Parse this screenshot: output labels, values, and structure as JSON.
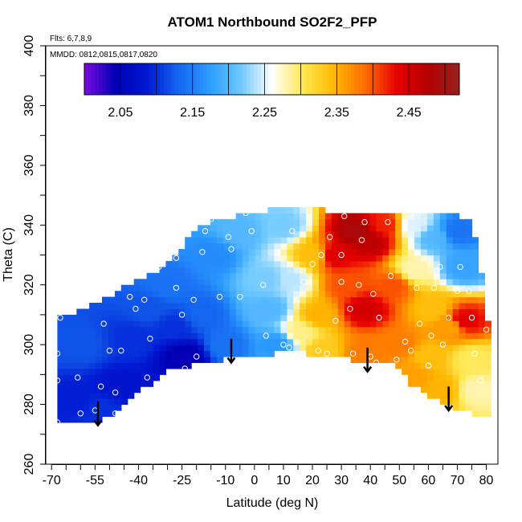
{
  "chart_data": {
    "type": "heatmap",
    "title": "ATOM1 Northbound SO2F2_PFP",
    "flights_label": "Flts: 6,7,8,9",
    "dates_label": "MMDD: 0812,0815,0817,0820",
    "xlabel": "Latitude (deg N)",
    "ylabel": "Theta (C)",
    "xlim": [
      -72,
      84
    ],
    "ylim": [
      260,
      400
    ],
    "x_ticks": [
      -70,
      -55,
      -40,
      -25,
      -10,
      0,
      10,
      20,
      30,
      40,
      50,
      60,
      70,
      80
    ],
    "x_tick_labels": [
      "-70",
      "-55",
      "-40",
      "-25",
      "-10",
      "0",
      "10",
      "20",
      "30",
      "40",
      "50",
      "60",
      "70",
      "80"
    ],
    "x_minor_ticks": [
      -65,
      -60,
      -50,
      -45,
      -35,
      -30,
      -20,
      -15,
      -5,
      5,
      15,
      25,
      35,
      45,
      55,
      65,
      75
    ],
    "y_ticks": [
      260,
      280,
      300,
      320,
      340,
      360,
      380,
      400
    ],
    "y_tick_labels": [
      "260",
      "280",
      "300",
      "320",
      "340",
      "360",
      "380",
      "400"
    ],
    "y_minor_ticks": [
      270,
      290,
      310,
      330,
      350,
      370,
      390
    ],
    "colorbar": {
      "min": 2.0,
      "max": 2.52,
      "ticks": [
        2.05,
        2.15,
        2.25,
        2.35,
        2.45
      ],
      "tick_labels": [
        "2.05",
        "2.15",
        "2.25",
        "2.35",
        "2.45"
      ],
      "colors": [
        "#7a0ae0",
        "#0000b4",
        "#0018d2",
        "#1466f0",
        "#2c9cff",
        "#6cc8ff",
        "#ffffff",
        "#ffe850",
        "#ffb800",
        "#ff6a00",
        "#e80000",
        "#b40000",
        "#962020"
      ]
    },
    "domain_lower": [
      [
        -68,
        273
      ],
      [
        -56,
        274
      ],
      [
        -48,
        277
      ],
      [
        -36,
        287
      ],
      [
        -30,
        292
      ],
      [
        -15,
        294
      ],
      [
        -5,
        296
      ],
      [
        5,
        296
      ],
      [
        13,
        299
      ],
      [
        17,
        297
      ],
      [
        28,
        296
      ],
      [
        38,
        294
      ],
      [
        48,
        293
      ],
      [
        55,
        286
      ],
      [
        65,
        280
      ],
      [
        72,
        278
      ],
      [
        80,
        276
      ]
    ],
    "domain_upper": [
      [
        -68,
        310
      ],
      [
        -62,
        311
      ],
      [
        -56,
        313
      ],
      [
        -50,
        316
      ],
      [
        -44,
        320
      ],
      [
        -38,
        322
      ],
      [
        -32,
        326
      ],
      [
        -28,
        329
      ],
      [
        -24,
        334
      ],
      [
        -20,
        339
      ],
      [
        -14,
        342
      ],
      [
        -6,
        343
      ],
      [
        4,
        345
      ],
      [
        12,
        347
      ],
      [
        20,
        346
      ],
      [
        30,
        344
      ],
      [
        40,
        344
      ],
      [
        50,
        344
      ],
      [
        60,
        344
      ],
      [
        64,
        343
      ],
      [
        70,
        343
      ],
      [
        74,
        341
      ],
      [
        76,
        336
      ],
      [
        77,
        330
      ],
      [
        78,
        326
      ],
      [
        79,
        318
      ],
      [
        80,
        307
      ]
    ],
    "anchors": [
      {
        "lat": -62,
        "theta": 282,
        "value": 2.09
      },
      {
        "lat": -52,
        "theta": 278,
        "value": 2.1
      },
      {
        "lat": -60,
        "theta": 300,
        "value": 2.12
      },
      {
        "lat": -46,
        "theta": 286,
        "value": 2.08
      },
      {
        "lat": -42,
        "theta": 302,
        "value": 2.1
      },
      {
        "lat": -36,
        "theta": 312,
        "value": 2.12
      },
      {
        "lat": -30,
        "theta": 320,
        "value": 2.14
      },
      {
        "lat": -24,
        "theta": 296,
        "value": 2.04
      },
      {
        "lat": -28,
        "theta": 306,
        "value": 2.1
      },
      {
        "lat": -18,
        "theta": 310,
        "value": 2.13
      },
      {
        "lat": -10,
        "theta": 300,
        "value": 2.14
      },
      {
        "lat": -14,
        "theta": 330,
        "value": 2.16
      },
      {
        "lat": -5,
        "theta": 338,
        "value": 2.2
      },
      {
        "lat": 5,
        "theta": 312,
        "value": 2.2
      },
      {
        "lat": 8,
        "theta": 300,
        "value": 2.17
      },
      {
        "lat": 5,
        "theta": 322,
        "value": 2.22
      },
      {
        "lat": 12,
        "theta": 322,
        "value": 2.24
      },
      {
        "lat": 10,
        "theta": 340,
        "value": 2.22
      },
      {
        "lat": 16,
        "theta": 304,
        "value": 2.29
      },
      {
        "lat": 20,
        "theta": 330,
        "value": 2.34
      },
      {
        "lat": 22,
        "theta": 310,
        "value": 2.35
      },
      {
        "lat": 23,
        "theta": 298,
        "value": 2.33
      },
      {
        "lat": 28,
        "theta": 330,
        "value": 2.44
      },
      {
        "lat": 35,
        "theta": 338,
        "value": 2.49
      },
      {
        "lat": 40,
        "theta": 335,
        "value": 2.47
      },
      {
        "lat": 38,
        "theta": 312,
        "value": 2.45
      },
      {
        "lat": 32,
        "theta": 320,
        "value": 2.4
      },
      {
        "lat": 45,
        "theta": 340,
        "value": 2.42
      },
      {
        "lat": 48,
        "theta": 320,
        "value": 2.4
      },
      {
        "lat": 50,
        "theta": 300,
        "value": 2.38
      },
      {
        "lat": 38,
        "theta": 298,
        "value": 2.38
      },
      {
        "lat": 55,
        "theta": 340,
        "value": 2.25
      },
      {
        "lat": 55,
        "theta": 325,
        "value": 2.28
      },
      {
        "lat": 62,
        "theta": 336,
        "value": 2.2
      },
      {
        "lat": 70,
        "theta": 338,
        "value": 2.14
      },
      {
        "lat": 72,
        "theta": 326,
        "value": 2.18
      },
      {
        "lat": 62,
        "theta": 312,
        "value": 2.34
      },
      {
        "lat": 68,
        "theta": 306,
        "value": 2.36
      },
      {
        "lat": 72,
        "theta": 308,
        "value": 2.44
      },
      {
        "lat": 75,
        "theta": 295,
        "value": 2.3
      },
      {
        "lat": 76,
        "theta": 285,
        "value": 2.28
      },
      {
        "lat": 65,
        "theta": 285,
        "value": 2.35
      },
      {
        "lat": 60,
        "theta": 296,
        "value": 2.34
      },
      {
        "lat": 55,
        "theta": 290,
        "value": 2.36
      }
    ],
    "samples": [
      [
        -68,
        274
      ],
      [
        -68,
        288
      ],
      [
        -68,
        297
      ],
      [
        -67,
        309
      ],
      [
        -61,
        289
      ],
      [
        -60,
        277
      ],
      [
        -55,
        278
      ],
      [
        -53,
        286
      ],
      [
        -52,
        307
      ],
      [
        -50,
        298
      ],
      [
        -48,
        284
      ],
      [
        -48,
        277
      ],
      [
        -46,
        298
      ],
      [
        -43,
        316
      ],
      [
        -41,
        312
      ],
      [
        -38,
        315
      ],
      [
        -37,
        289
      ],
      [
        -36,
        302
      ],
      [
        -33,
        326
      ],
      [
        -30,
        329
      ],
      [
        -27,
        329
      ],
      [
        -27,
        319
      ],
      [
        -25,
        310
      ],
      [
        -24,
        292
      ],
      [
        -21,
        315
      ],
      [
        -20,
        296
      ],
      [
        -18,
        331
      ],
      [
        -17,
        338
      ],
      [
        -15,
        342
      ],
      [
        -12,
        316
      ],
      [
        -9,
        336
      ],
      [
        -8,
        332
      ],
      [
        -5,
        316
      ],
      [
        -3,
        344
      ],
      [
        -1,
        338
      ],
      [
        3,
        320
      ],
      [
        4,
        303
      ],
      [
        7,
        347
      ],
      [
        8,
        329
      ],
      [
        10,
        300
      ],
      [
        12,
        299
      ],
      [
        13,
        338
      ],
      [
        15,
        348
      ],
      [
        17,
        321
      ],
      [
        20,
        327
      ],
      [
        22,
        298
      ],
      [
        23,
        330
      ],
      [
        25,
        297
      ],
      [
        26,
        336
      ],
      [
        28,
        308
      ],
      [
        30,
        321
      ],
      [
        30,
        330
      ],
      [
        31,
        343
      ],
      [
        33,
        312
      ],
      [
        34,
        297
      ],
      [
        36,
        320
      ],
      [
        37,
        335
      ],
      [
        38,
        341
      ],
      [
        40,
        296
      ],
      [
        41,
        317
      ],
      [
        42,
        294
      ],
      [
        43,
        309
      ],
      [
        46,
        341
      ],
      [
        47,
        323
      ],
      [
        49,
        295
      ],
      [
        52,
        301
      ],
      [
        54,
        298
      ],
      [
        56,
        319
      ],
      [
        57,
        307
      ],
      [
        60,
        293
      ],
      [
        61,
        303
      ],
      [
        62,
        319
      ],
      [
        64,
        326
      ],
      [
        65,
        300
      ],
      [
        67,
        309
      ],
      [
        70,
        318
      ],
      [
        71,
        326
      ],
      [
        72,
        343
      ],
      [
        74,
        318
      ],
      [
        75,
        309
      ],
      [
        76,
        297
      ],
      [
        78,
        288
      ],
      [
        80,
        305
      ]
    ],
    "arrows": [
      {
        "lat": -54,
        "theta_top": 281,
        "theta_tip": 273
      },
      {
        "lat": -8,
        "theta_top": 302,
        "theta_tip": 294
      },
      {
        "lat": 39,
        "theta_top": 299,
        "theta_tip": 291
      },
      {
        "lat": 67,
        "theta_top": 286,
        "theta_tip": 278
      }
    ]
  }
}
